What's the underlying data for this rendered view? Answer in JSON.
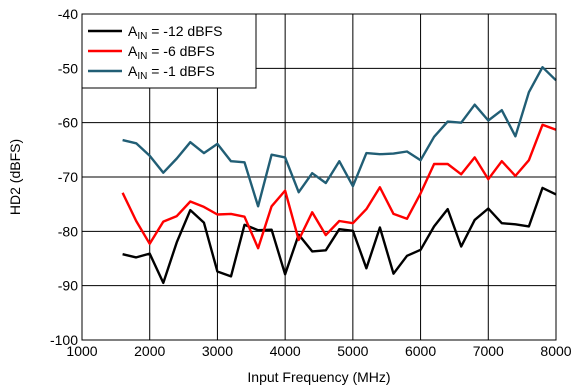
{
  "chart_data": {
    "type": "line",
    "title": "",
    "xlabel": "Input Frequency (MHz)",
    "ylabel": "HD2 (dBFS)",
    "xlim": [
      1000,
      8000
    ],
    "ylim": [
      -100,
      -40
    ],
    "xticks": [
      1000,
      2000,
      3000,
      4000,
      5000,
      6000,
      7000,
      8000
    ],
    "yticks": [
      -100,
      -90,
      -80,
      -70,
      -60,
      -50,
      -40
    ],
    "grid": true,
    "legend_position": "top-left",
    "series": [
      {
        "name_parts": [
          "A",
          "IN",
          " = -12 dBFS"
        ],
        "color": "#000000",
        "x": [
          1600,
          1800,
          2000,
          2200,
          2400,
          2600,
          2800,
          3000,
          3200,
          3400,
          3600,
          3800,
          4000,
          4200,
          4400,
          4600,
          4800,
          5000,
          5200,
          5400,
          5600,
          5800,
          6000,
          6200,
          6400,
          6600,
          6800,
          7000,
          7200,
          7400,
          7600,
          7800,
          8000
        ],
        "y": [
          -84.2,
          -84.8,
          -84.1,
          -89.5,
          -82.0,
          -76.1,
          -78.4,
          -87.4,
          -88.3,
          -78.8,
          -79.8,
          -79.7,
          -87.9,
          -80.6,
          -83.7,
          -83.5,
          -79.6,
          -79.9,
          -86.8,
          -79.3,
          -87.8,
          -84.5,
          -83.4,
          -79.1,
          -75.9,
          -82.8,
          -77.9,
          -75.8,
          -78.5,
          -78.7,
          -79.1,
          -72.0,
          -73.2
        ]
      },
      {
        "name_parts": [
          "A",
          "IN",
          " = -6 dBFS"
        ],
        "color": "#ff0000",
        "x": [
          1600,
          1800,
          2000,
          2200,
          2400,
          2600,
          2800,
          3000,
          3200,
          3400,
          3600,
          3800,
          4000,
          4200,
          4400,
          4600,
          4800,
          5000,
          5200,
          5400,
          5600,
          5800,
          6000,
          6200,
          6400,
          6600,
          6800,
          7000,
          7200,
          7400,
          7600,
          7800,
          8000
        ],
        "y": [
          -72.9,
          -78.1,
          -82.3,
          -78.2,
          -77.2,
          -74.5,
          -75.5,
          -76.9,
          -76.8,
          -77.3,
          -83.1,
          -75.4,
          -72.5,
          -81.6,
          -76.5,
          -80.7,
          -78.1,
          -78.5,
          -75.9,
          -71.9,
          -76.8,
          -77.7,
          -73.0,
          -67.6,
          -67.6,
          -69.5,
          -66.4,
          -70.4,
          -67.1,
          -69.8,
          -66.9,
          -60.4,
          -61.3
        ]
      },
      {
        "name_parts": [
          "A",
          "IN",
          " = -1 dBFS"
        ],
        "color": "#215e75",
        "x": [
          1600,
          1800,
          2000,
          2200,
          2400,
          2600,
          2800,
          3000,
          3200,
          3400,
          3600,
          3800,
          4000,
          4200,
          4400,
          4600,
          4800,
          5000,
          5200,
          5400,
          5600,
          5800,
          6000,
          6200,
          6400,
          6600,
          6800,
          7000,
          7200,
          7400,
          7600,
          7800,
          8000
        ],
        "y": [
          -63.2,
          -63.8,
          -66.1,
          -69.2,
          -66.6,
          -63.6,
          -65.6,
          -63.9,
          -67.1,
          -67.3,
          -75.4,
          -65.9,
          -66.4,
          -72.8,
          -69.3,
          -71.1,
          -67.1,
          -71.7,
          -65.6,
          -65.8,
          -65.7,
          -65.3,
          -66.9,
          -62.6,
          -59.8,
          -60.0,
          -56.7,
          -59.6,
          -57.7,
          -62.5,
          -54.4,
          -49.8,
          -52.2
        ]
      }
    ]
  }
}
